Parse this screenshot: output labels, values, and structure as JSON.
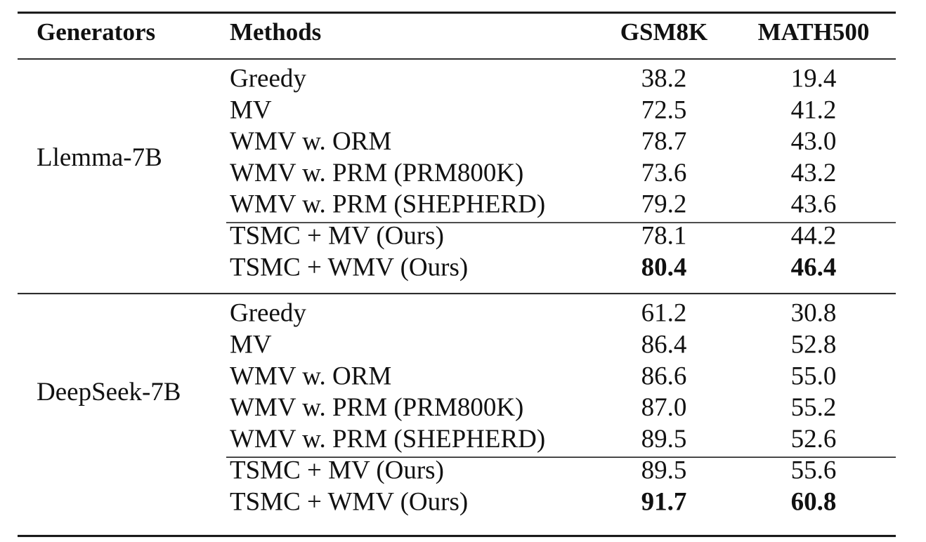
{
  "table": {
    "header": [
      "Generators",
      "Methods",
      "GSM8K",
      "MATH500"
    ],
    "groups": [
      {
        "generator": "Llemma-7B",
        "rows": [
          [
            "Greedy",
            "38.2",
            "19.4"
          ],
          [
            "MV",
            "72.5",
            "41.2"
          ],
          [
            "WMV w. ORM",
            "78.7",
            "43.0"
          ],
          [
            "WMV w. PRM (PRM800K)",
            "73.6",
            "43.2"
          ],
          [
            "WMV w. PRM (SHEPHERD)",
            "79.2",
            "43.6"
          ],
          [
            "TSMC + MV (Ours)",
            "78.1",
            "44.2"
          ],
          [
            "TSMC + WMV (Ours)",
            "80.4",
            "46.4"
          ]
        ]
      },
      {
        "generator": "DeepSeek-7B",
        "rows": [
          [
            "Greedy",
            "61.2",
            "30.8"
          ],
          [
            "MV",
            "86.4",
            "52.8"
          ],
          [
            "WMV w. ORM",
            "86.6",
            "55.0"
          ],
          [
            "WMV w. PRM (PRM800K)",
            "87.0",
            "55.2"
          ],
          [
            "WMV w. PRM (SHEPHERD)",
            "89.5",
            "52.6"
          ],
          [
            "TSMC + MV (Ours)",
            "89.5",
            "55.6"
          ],
          [
            "TSMC + WMV (Ours)",
            "91.7",
            "60.8"
          ]
        ]
      }
    ]
  }
}
